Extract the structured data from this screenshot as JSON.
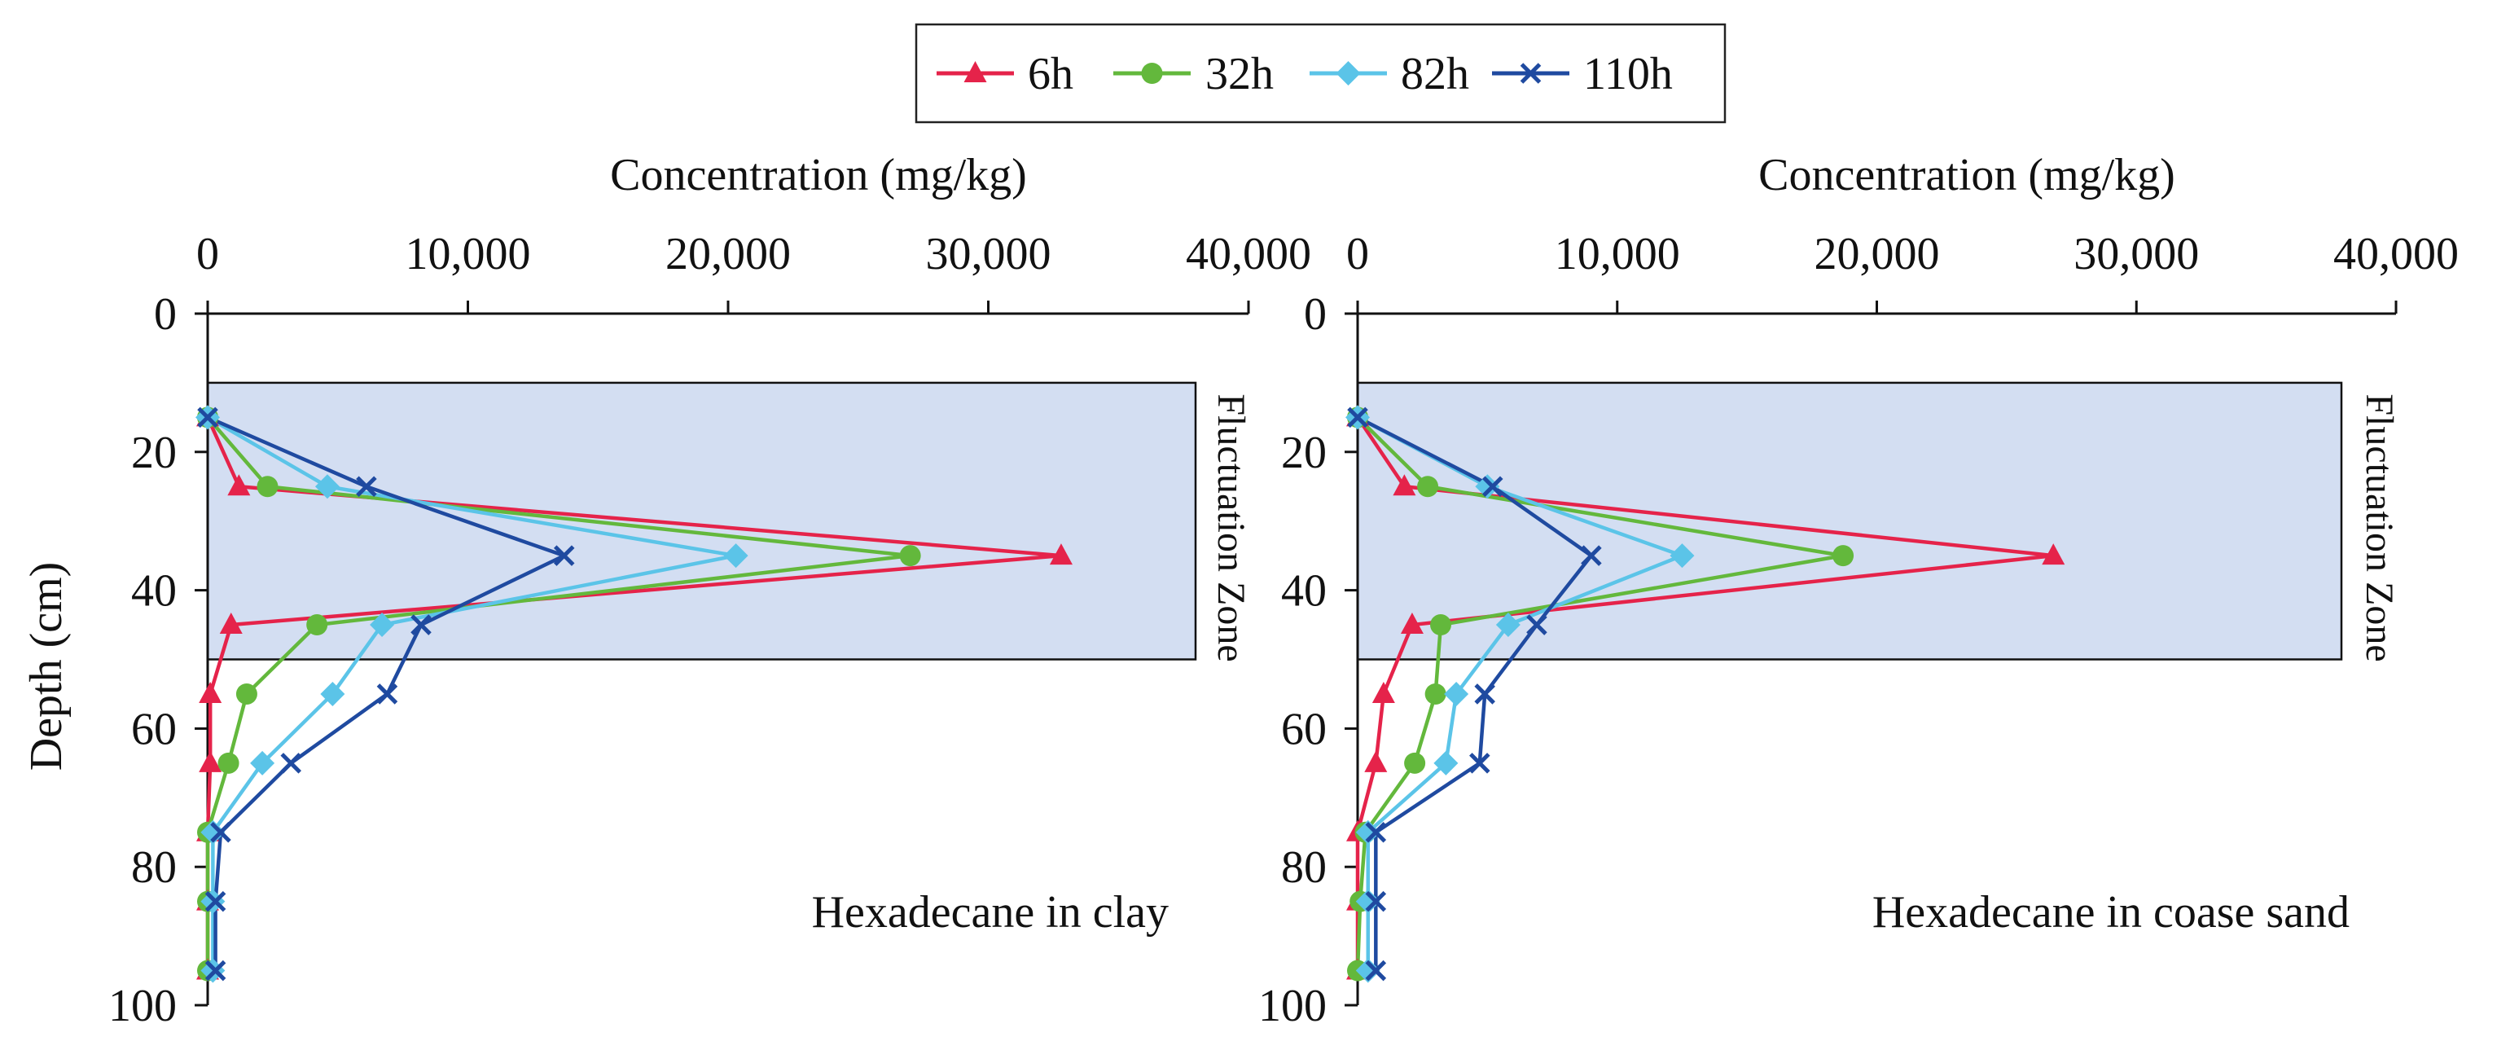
{
  "chart_data": {
    "type": "line",
    "legend": {
      "placement": "top-center",
      "entries": [
        "6h",
        "32h",
        "82h",
        "110h"
      ]
    },
    "series_styles": {
      "6h": {
        "color": "#e5234a",
        "marker": "triangle"
      },
      "32h": {
        "color": "#63b83c",
        "marker": "circle"
      },
      "82h": {
        "color": "#5bc4e8",
        "marker": "diamond"
      },
      "110h": {
        "color": "#1f4aa0",
        "marker": "x"
      }
    },
    "zone_color": "#d3def2",
    "panels": [
      {
        "title": "Hexadecane in clay",
        "xlabel": "Concentration (mg/kg)",
        "ylabel": "Depth (cm)",
        "xlim": [
          0,
          40000
        ],
        "ylim": [
          0,
          100
        ],
        "x_ticks": [
          "0",
          "10,000",
          "20,000",
          "30,000",
          "40,000"
        ],
        "y_ticks": [
          "0",
          "20",
          "40",
          "60",
          "80",
          "100"
        ],
        "zone": {
          "label": "Fluctuation Zone",
          "depth_range": [
            10,
            50
          ],
          "x_max": 38000
        },
        "series": [
          {
            "name": "6h",
            "depth": [
              15,
              25,
              35,
              45,
              55,
              65,
              75,
              85,
              95
            ],
            "concentration": [
              0,
              1200,
              32800,
              900,
              100,
              100,
              0,
              0,
              0
            ]
          },
          {
            "name": "32h",
            "depth": [
              15,
              25,
              35,
              45,
              55,
              65,
              75,
              85,
              95
            ],
            "concentration": [
              0,
              2300,
              27000,
              4200,
              1500,
              800,
              0,
              0,
              0
            ]
          },
          {
            "name": "82h",
            "depth": [
              15,
              25,
              35,
              45,
              55,
              65,
              75,
              85,
              95
            ],
            "concentration": [
              0,
              4600,
              20300,
              6700,
              4800,
              2100,
              200,
              200,
              200
            ]
          },
          {
            "name": "110h",
            "depth": [
              15,
              25,
              35,
              45,
              55,
              65,
              75,
              85,
              95
            ],
            "concentration": [
              0,
              6100,
              13700,
              8200,
              6900,
              3200,
              500,
              300,
              300
            ]
          }
        ]
      },
      {
        "title": "Hexadecane in coase sand",
        "xlabel": "Concentration (mg/kg)",
        "ylabel": "",
        "xlim": [
          0,
          40000
        ],
        "ylim": [
          0,
          100
        ],
        "x_ticks": [
          "0",
          "10,000",
          "20,000",
          "30,000",
          "40,000"
        ],
        "y_ticks": [
          "0",
          "20",
          "40",
          "60",
          "80",
          "100"
        ],
        "zone": {
          "label": "Fluctuation Zone",
          "depth_range": [
            10,
            50
          ],
          "x_max": 38000
        },
        "series": [
          {
            "name": "6h",
            "depth": [
              15,
              25,
              35,
              45,
              55,
              65,
              75,
              85,
              95
            ],
            "concentration": [
              0,
              1800,
              26800,
              2100,
              1000,
              700,
              0,
              0,
              0
            ]
          },
          {
            "name": "32h",
            "depth": [
              15,
              25,
              35,
              45,
              55,
              65,
              75,
              85,
              95
            ],
            "concentration": [
              0,
              2700,
              18700,
              3200,
              3000,
              2200,
              300,
              100,
              0
            ]
          },
          {
            "name": "82h",
            "depth": [
              15,
              25,
              35,
              45,
              55,
              65,
              75,
              85,
              95
            ],
            "concentration": [
              0,
              5000,
              12500,
              5800,
              3800,
              3400,
              400,
              400,
              400
            ]
          },
          {
            "name": "110h",
            "depth": [
              15,
              25,
              35,
              45,
              55,
              65,
              75,
              85,
              95
            ],
            "concentration": [
              0,
              5200,
              9000,
              6900,
              4900,
              4700,
              700,
              700,
              700
            ]
          }
        ]
      }
    ]
  }
}
